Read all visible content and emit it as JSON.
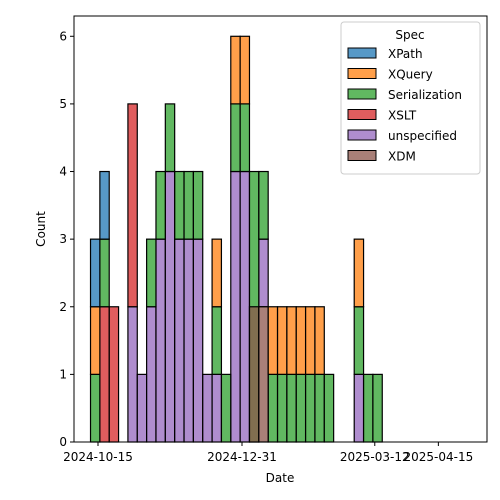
{
  "chart_data": {
    "type": "bar",
    "stacked": true,
    "xlabel": "Date",
    "ylabel": "Count",
    "ylim": [
      0,
      6.3
    ],
    "grid": false,
    "x_ticks": [
      "2024-10-15",
      "2024-12-31",
      "2025-03-12",
      "2025-04-15"
    ],
    "y_ticks": [
      0,
      1,
      2,
      3,
      4,
      5,
      6
    ],
    "legend": {
      "title": "Spec",
      "placement": "top-right"
    },
    "bin_width_days": 5,
    "series": [
      {
        "name": "unspecified",
        "color": "#9467bd",
        "bins": [
          {
            "x0": "2024-10-31",
            "x1": "2024-11-05",
            "base": 0,
            "value": 2
          },
          {
            "x0": "2024-11-05",
            "x1": "2024-11-10",
            "base": 0,
            "value": 1
          },
          {
            "x0": "2024-11-10",
            "x1": "2024-11-15",
            "base": 0,
            "value": 2
          },
          {
            "x0": "2024-11-15",
            "x1": "2024-11-20",
            "base": 0,
            "value": 3
          },
          {
            "x0": "2024-11-20",
            "x1": "2024-11-25",
            "base": 0,
            "value": 4
          },
          {
            "x0": "2024-11-25",
            "x1": "2024-11-30",
            "base": 0,
            "value": 3
          },
          {
            "x0": "2024-11-30",
            "x1": "2024-12-05",
            "base": 0,
            "value": 3
          },
          {
            "x0": "2024-12-05",
            "x1": "2024-12-10",
            "base": 0,
            "value": 3
          },
          {
            "x0": "2024-12-10",
            "x1": "2024-12-15",
            "base": 0,
            "value": 1
          },
          {
            "x0": "2024-12-15",
            "x1": "2024-12-20",
            "base": 0,
            "value": 1
          },
          {
            "x0": "2024-12-25",
            "x1": "2024-12-30",
            "base": 0,
            "value": 4
          },
          {
            "x0": "2024-12-30",
            "x1": "2025-01-04",
            "base": 0,
            "value": 4
          },
          {
            "x0": "2025-01-09",
            "x1": "2025-01-14",
            "base": 2,
            "value": 1
          },
          {
            "x0": "2025-03-01",
            "x1": "2025-03-06",
            "base": 0,
            "value": 1
          }
        ]
      },
      {
        "name": "XSLT",
        "color": "#d62728",
        "bins": [
          {
            "x0": "2024-10-16",
            "x1": "2024-10-21",
            "base": 0,
            "value": 2
          },
          {
            "x0": "2024-10-21",
            "x1": "2024-10-26",
            "base": 0,
            "value": 2
          },
          {
            "x0": "2024-10-31",
            "x1": "2024-11-05",
            "base": 2,
            "value": 3
          }
        ]
      },
      {
        "name": "Serialization",
        "color": "#2ca02c",
        "bins": [
          {
            "x0": "2024-10-11",
            "x1": "2024-10-16",
            "base": 0,
            "value": 1
          },
          {
            "x0": "2024-10-16",
            "x1": "2024-10-21",
            "base": 2,
            "value": 1
          },
          {
            "x0": "2024-11-10",
            "x1": "2024-11-15",
            "base": 2,
            "value": 1
          },
          {
            "x0": "2024-11-15",
            "x1": "2024-11-20",
            "base": 3,
            "value": 1
          },
          {
            "x0": "2024-11-20",
            "x1": "2024-11-25",
            "base": 4,
            "value": 1
          },
          {
            "x0": "2024-11-25",
            "x1": "2024-11-30",
            "base": 3,
            "value": 1
          },
          {
            "x0": "2024-11-30",
            "x1": "2024-12-05",
            "base": 3,
            "value": 1
          },
          {
            "x0": "2024-12-05",
            "x1": "2024-12-10",
            "base": 3,
            "value": 1
          },
          {
            "x0": "2024-12-15",
            "x1": "2024-12-20",
            "base": 1,
            "value": 1
          },
          {
            "x0": "2024-12-20",
            "x1": "2024-12-25",
            "base": 0,
            "value": 1
          },
          {
            "x0": "2024-12-25",
            "x1": "2024-12-30",
            "base": 4,
            "value": 1
          },
          {
            "x0": "2024-12-30",
            "x1": "2025-01-04",
            "base": 4,
            "value": 1
          },
          {
            "x0": "2025-01-04",
            "x1": "2025-01-09",
            "base": 0,
            "value": 4
          },
          {
            "x0": "2025-01-09",
            "x1": "2025-01-14",
            "base": 3,
            "value": 1
          },
          {
            "x0": "2025-01-14",
            "x1": "2025-01-19",
            "base": 0,
            "value": 1
          },
          {
            "x0": "2025-01-19",
            "x1": "2025-01-24",
            "base": 0,
            "value": 1
          },
          {
            "x0": "2025-01-24",
            "x1": "2025-01-29",
            "base": 0,
            "value": 1
          },
          {
            "x0": "2025-01-29",
            "x1": "2025-02-03",
            "base": 0,
            "value": 1
          },
          {
            "x0": "2025-02-03",
            "x1": "2025-02-08",
            "base": 0,
            "value": 1
          },
          {
            "x0": "2025-02-08",
            "x1": "2025-02-13",
            "base": 0,
            "value": 1
          },
          {
            "x0": "2025-02-13",
            "x1": "2025-02-18",
            "base": 0,
            "value": 1
          },
          {
            "x0": "2025-03-01",
            "x1": "2025-03-06",
            "base": 1,
            "value": 1
          },
          {
            "x0": "2025-03-06",
            "x1": "2025-03-11",
            "base": 0,
            "value": 1
          },
          {
            "x0": "2025-03-11",
            "x1": "2025-03-16",
            "base": 0,
            "value": 1
          }
        ]
      },
      {
        "name": "XDM",
        "color": "#8c564b",
        "bins": [
          {
            "x0": "2025-01-04",
            "x1": "2025-01-09",
            "base": 0,
            "value": 2
          },
          {
            "x0": "2025-01-09",
            "x1": "2025-01-14",
            "base": 0,
            "value": 2
          }
        ]
      },
      {
        "name": "XQuery",
        "color": "#ff7f0e",
        "bins": [
          {
            "x0": "2024-10-11",
            "x1": "2024-10-16",
            "base": 1,
            "value": 1
          },
          {
            "x0": "2024-12-15",
            "x1": "2024-12-20",
            "base": 2,
            "value": 1
          },
          {
            "x0": "2024-12-25",
            "x1": "2024-12-30",
            "base": 5,
            "value": 1
          },
          {
            "x0": "2024-12-30",
            "x1": "2025-01-04",
            "base": 5,
            "value": 1
          },
          {
            "x0": "2025-01-14",
            "x1": "2025-01-19",
            "base": 1,
            "value": 1
          },
          {
            "x0": "2025-01-19",
            "x1": "2025-01-24",
            "base": 1,
            "value": 1
          },
          {
            "x0": "2025-01-24",
            "x1": "2025-01-29",
            "base": 1,
            "value": 1
          },
          {
            "x0": "2025-01-29",
            "x1": "2025-02-03",
            "base": 1,
            "value": 1
          },
          {
            "x0": "2025-02-03",
            "x1": "2025-02-08",
            "base": 1,
            "value": 1
          },
          {
            "x0": "2025-02-08",
            "x1": "2025-02-13",
            "base": 1,
            "value": 1
          },
          {
            "x0": "2025-03-01",
            "x1": "2025-03-06",
            "base": 2,
            "value": 1
          }
        ]
      },
      {
        "name": "XPath",
        "color": "#1f77b4",
        "bins": [
          {
            "x0": "2024-10-11",
            "x1": "2024-10-16",
            "base": 2,
            "value": 1
          },
          {
            "x0": "2024-10-16",
            "x1": "2024-10-21",
            "base": 3,
            "value": 1
          }
        ]
      }
    ],
    "legend_order": [
      "XPath",
      "XQuery",
      "Serialization",
      "XSLT",
      "unspecified",
      "XDM"
    ]
  }
}
